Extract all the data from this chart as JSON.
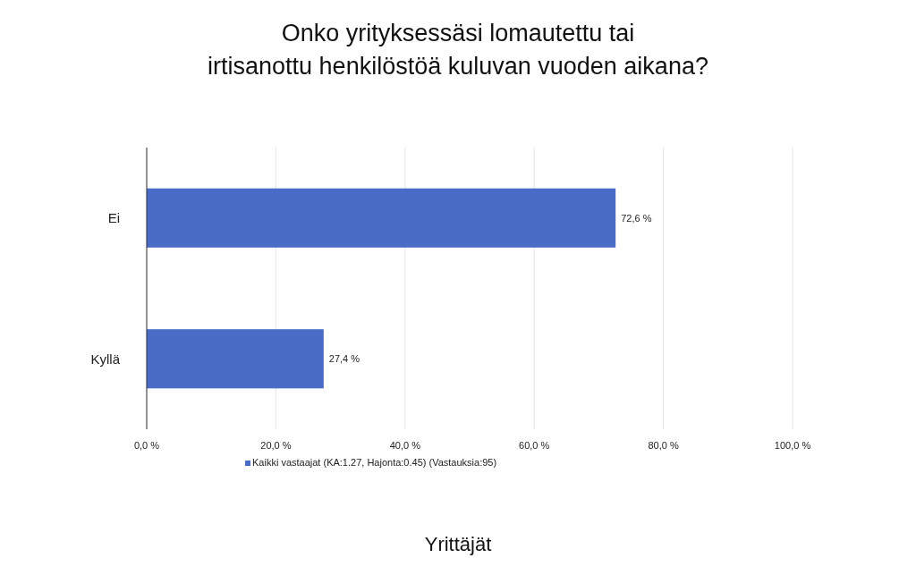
{
  "chart_data": {
    "type": "bar",
    "orientation": "horizontal",
    "title": "Onko yrityksessäsi lomautettu tai\nirtisanottu henkilöstöä kuluvan vuoden aikana?",
    "categories": [
      "Ei",
      "Kyllä"
    ],
    "series": [
      {
        "name": "Kaikki vastaajat (KA:1.27, Hajonta:0.45) (Vastauksia:95)",
        "color": "#4a6cc6",
        "values": [
          72.6,
          27.4
        ],
        "value_labels": [
          "72,6 %",
          "27,4 %"
        ]
      }
    ],
    "xlim": [
      0,
      100
    ],
    "xticks": [
      {
        "value": 0,
        "label": "0,0 %"
      },
      {
        "value": 20,
        "label": "20,0 %"
      },
      {
        "value": 40,
        "label": "40,0 %"
      },
      {
        "value": 60,
        "label": "60,0 %"
      },
      {
        "value": 80,
        "label": "80,0 %"
      },
      {
        "value": 100,
        "label": "100,0 %"
      }
    ],
    "grid": "x",
    "legend": "bottom",
    "annotations": [
      "Yrittäjät"
    ]
  }
}
